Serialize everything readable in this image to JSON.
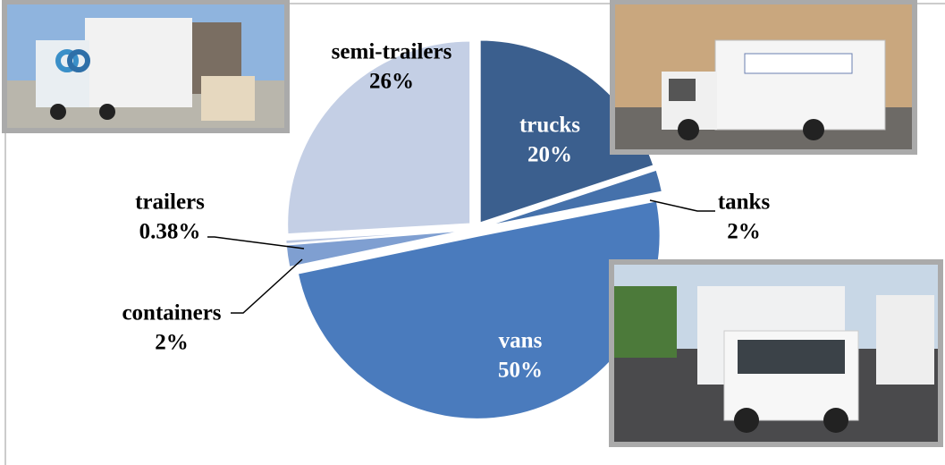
{
  "chart_data": {
    "type": "pie",
    "categories": [
      "trucks",
      "tanks",
      "vans",
      "containers",
      "trailers",
      "semi-trailers"
    ],
    "values": [
      20,
      2,
      50,
      2,
      0.38,
      26
    ],
    "value_labels": [
      "20%",
      "2%",
      "50%",
      "2%",
      "0.38%",
      "26%"
    ],
    "colors": [
      "#3b5f8e",
      "#4571ab",
      "#4a7bbd",
      "#7f9fd1",
      "#b8c6e2",
      "#c4cfe5"
    ]
  }
}
